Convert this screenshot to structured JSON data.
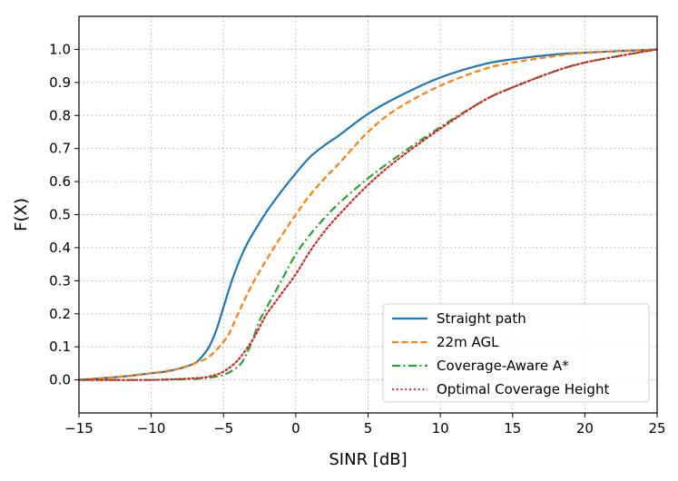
{
  "chart_data": {
    "type": "line",
    "title": "",
    "xlabel": "SINR [dB]",
    "ylabel": "F(X)",
    "xlim": [
      -15,
      25
    ],
    "ylim": [
      -0.1,
      1.1
    ],
    "xticks": [
      -15,
      -10,
      -5,
      0,
      5,
      10,
      15,
      20,
      25
    ],
    "xtick_labels": [
      "−15",
      "−10",
      "−5",
      "0",
      "5",
      "10",
      "15",
      "20",
      "25"
    ],
    "yticks": [
      0.0,
      0.1,
      0.2,
      0.3,
      0.4,
      0.5,
      0.6,
      0.7,
      0.8,
      0.9,
      1.0
    ],
    "ytick_labels": [
      "0.0",
      "0.1",
      "0.2",
      "0.3",
      "0.4",
      "0.5",
      "0.6",
      "0.7",
      "0.8",
      "0.9",
      "1.0"
    ],
    "grid": true,
    "legend_position": "bottom-right",
    "series": [
      {
        "name": "Straight path",
        "color": "#1f77b4",
        "linestyle": "solid",
        "x": [
          -15,
          -12,
          -10,
          -9,
          -8,
          -7,
          -6.5,
          -6,
          -5.5,
          -5,
          -4.5,
          -4,
          -3.5,
          -3,
          -2,
          -1,
          0,
          1,
          2,
          3,
          5,
          7,
          10,
          13,
          15,
          18,
          20,
          23,
          25
        ],
        "y": [
          0.0,
          0.01,
          0.02,
          0.025,
          0.035,
          0.05,
          0.07,
          0.1,
          0.15,
          0.22,
          0.29,
          0.35,
          0.4,
          0.44,
          0.51,
          0.57,
          0.625,
          0.675,
          0.71,
          0.74,
          0.805,
          0.855,
          0.915,
          0.955,
          0.97,
          0.985,
          0.99,
          0.996,
          1.0
        ]
      },
      {
        "name": "22m AGL",
        "color": "#ff7f0e",
        "linestyle": "dashed",
        "x": [
          -15,
          -12,
          -10,
          -8,
          -7,
          -6,
          -5,
          -4.5,
          -4,
          -3,
          -2,
          -1,
          0,
          1,
          2,
          3,
          5,
          7,
          10,
          13,
          15,
          18,
          20,
          23,
          25
        ],
        "y": [
          0.0,
          0.01,
          0.02,
          0.035,
          0.05,
          0.07,
          0.115,
          0.15,
          0.2,
          0.29,
          0.365,
          0.435,
          0.5,
          0.56,
          0.61,
          0.655,
          0.75,
          0.82,
          0.89,
          0.94,
          0.96,
          0.98,
          0.99,
          0.996,
          1.0
        ]
      },
      {
        "name": "Coverage-Aware A*",
        "color": "#2ca02c",
        "linestyle": "dashdot",
        "x": [
          -15,
          -10,
          -7,
          -6,
          -5,
          -4,
          -3.5,
          -3,
          -2.5,
          -2,
          -1,
          0,
          1,
          2,
          3,
          5,
          7,
          10,
          13,
          15,
          18,
          20,
          23,
          25
        ],
        "y": [
          0.0,
          0.0,
          0.003,
          0.007,
          0.015,
          0.04,
          0.07,
          0.12,
          0.18,
          0.22,
          0.3,
          0.38,
          0.44,
          0.49,
          0.535,
          0.61,
          0.675,
          0.765,
          0.845,
          0.885,
          0.935,
          0.96,
          0.985,
          1.0
        ]
      },
      {
        "name": "Optimal Coverage Height",
        "color": "#d62728",
        "linestyle": "dotted",
        "x": [
          -15,
          -10,
          -7,
          -6,
          -5,
          -4,
          -3,
          -2.5,
          -2,
          -1,
          0,
          1,
          2,
          3,
          5,
          7,
          10,
          13,
          15,
          18,
          20,
          23,
          25
        ],
        "y": [
          0.0,
          0.0,
          0.005,
          0.01,
          0.025,
          0.06,
          0.12,
          0.16,
          0.2,
          0.26,
          0.32,
          0.39,
          0.45,
          0.5,
          0.59,
          0.665,
          0.76,
          0.845,
          0.885,
          0.935,
          0.96,
          0.985,
          1.0
        ]
      }
    ]
  }
}
